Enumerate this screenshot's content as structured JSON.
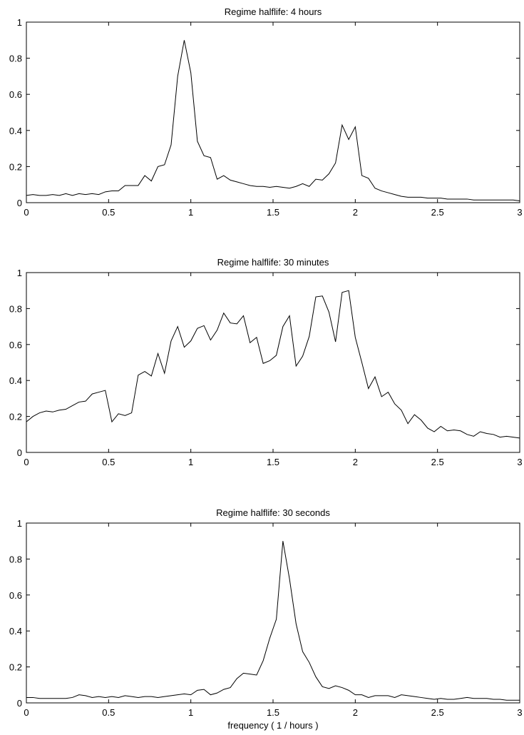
{
  "chart_data": [
    {
      "type": "line",
      "title": "Regime halflife: 4 hours",
      "xlabel": "",
      "ylabel": "",
      "xlim": [
        0,
        3
      ],
      "ylim": [
        0,
        1
      ],
      "xticks": [
        0,
        0.5,
        1,
        1.5,
        2,
        2.5,
        3
      ],
      "xtick_labels": [
        "0",
        "0.5",
        "1",
        "1.5",
        "2",
        "2.5",
        "3"
      ],
      "yticks": [
        0,
        0.2,
        0.4,
        0.6,
        0.8,
        1
      ],
      "ytick_labels": [
        "0",
        "0.2",
        "0.4",
        "0.6",
        "0.8",
        "1"
      ],
      "grid": false,
      "series": [
        {
          "color": "#000000",
          "x": [
            0,
            0.04,
            0.08,
            0.12,
            0.16,
            0.2,
            0.24,
            0.28,
            0.32,
            0.36,
            0.4,
            0.44,
            0.48,
            0.52,
            0.56,
            0.6,
            0.64,
            0.68,
            0.72,
            0.76,
            0.8,
            0.84,
            0.88,
            0.92,
            0.96,
            1.0,
            1.04,
            1.08,
            1.12,
            1.16,
            1.2,
            1.24,
            1.28,
            1.32,
            1.36,
            1.4,
            1.44,
            1.48,
            1.52,
            1.56,
            1.6,
            1.64,
            1.68,
            1.72,
            1.76,
            1.8,
            1.84,
            1.88,
            1.92,
            1.96,
            2.0,
            2.04,
            2.08,
            2.12,
            2.16,
            2.2,
            2.24,
            2.28,
            2.32,
            2.36,
            2.4,
            2.44,
            2.48,
            2.52,
            2.56,
            2.6,
            2.64,
            2.68,
            2.72,
            2.76,
            2.8,
            2.84,
            2.88,
            2.92,
            2.96,
            3.0
          ],
          "y": [
            0.04,
            0.045,
            0.04,
            0.04,
            0.045,
            0.04,
            0.05,
            0.04,
            0.05,
            0.045,
            0.05,
            0.045,
            0.06,
            0.065,
            0.065,
            0.095,
            0.095,
            0.095,
            0.15,
            0.12,
            0.2,
            0.21,
            0.32,
            0.7,
            0.9,
            0.72,
            0.34,
            0.26,
            0.25,
            0.13,
            0.15,
            0.125,
            0.115,
            0.105,
            0.095,
            0.09,
            0.09,
            0.085,
            0.09,
            0.085,
            0.08,
            0.09,
            0.105,
            0.09,
            0.13,
            0.125,
            0.16,
            0.22,
            0.43,
            0.35,
            0.42,
            0.15,
            0.135,
            0.08,
            0.065,
            0.055,
            0.045,
            0.035,
            0.03,
            0.03,
            0.03,
            0.025,
            0.025,
            0.025,
            0.02,
            0.02,
            0.02,
            0.02,
            0.015,
            0.015,
            0.015,
            0.015,
            0.015,
            0.015,
            0.015,
            0.01
          ]
        }
      ]
    },
    {
      "type": "line",
      "title": "Regime halflife: 30 minutes",
      "xlabel": "",
      "ylabel": "",
      "xlim": [
        0,
        3
      ],
      "ylim": [
        0,
        1
      ],
      "xticks": [
        0,
        0.5,
        1,
        1.5,
        2,
        2.5,
        3
      ],
      "xtick_labels": [
        "0",
        "0.5",
        "1",
        "1.5",
        "2",
        "2.5",
        "3"
      ],
      "yticks": [
        0,
        0.2,
        0.4,
        0.6,
        0.8,
        1
      ],
      "ytick_labels": [
        "0",
        "0.2",
        "0.4",
        "0.6",
        "0.8",
        "1"
      ],
      "grid": false,
      "series": [
        {
          "color": "#000000",
          "x": [
            0,
            0.04,
            0.08,
            0.12,
            0.16,
            0.2,
            0.24,
            0.28,
            0.32,
            0.36,
            0.4,
            0.44,
            0.48,
            0.52,
            0.56,
            0.6,
            0.64,
            0.68,
            0.72,
            0.76,
            0.8,
            0.84,
            0.88,
            0.92,
            0.96,
            1.0,
            1.04,
            1.08,
            1.12,
            1.16,
            1.2,
            1.24,
            1.28,
            1.32,
            1.36,
            1.4,
            1.44,
            1.48,
            1.52,
            1.56,
            1.6,
            1.64,
            1.68,
            1.72,
            1.76,
            1.8,
            1.84,
            1.88,
            1.92,
            1.96,
            2.0,
            2.04,
            2.08,
            2.12,
            2.16,
            2.2,
            2.24,
            2.28,
            2.32,
            2.36,
            2.4,
            2.44,
            2.48,
            2.52,
            2.56,
            2.6,
            2.64,
            2.68,
            2.72,
            2.76,
            2.8,
            2.84,
            2.88,
            2.92,
            2.96,
            3.0
          ],
          "y": [
            0.17,
            0.2,
            0.22,
            0.23,
            0.225,
            0.235,
            0.24,
            0.26,
            0.28,
            0.285,
            0.325,
            0.335,
            0.345,
            0.17,
            0.215,
            0.205,
            0.22,
            0.43,
            0.45,
            0.425,
            0.55,
            0.44,
            0.62,
            0.7,
            0.585,
            0.62,
            0.69,
            0.705,
            0.625,
            0.68,
            0.775,
            0.72,
            0.715,
            0.76,
            0.61,
            0.64,
            0.495,
            0.51,
            0.54,
            0.7,
            0.76,
            0.48,
            0.535,
            0.645,
            0.865,
            0.87,
            0.78,
            0.615,
            0.89,
            0.9,
            0.64,
            0.5,
            0.355,
            0.42,
            0.31,
            0.335,
            0.27,
            0.235,
            0.16,
            0.21,
            0.18,
            0.135,
            0.115,
            0.145,
            0.12,
            0.125,
            0.12,
            0.1,
            0.09,
            0.115,
            0.105,
            0.1,
            0.085,
            0.09,
            0.085,
            0.08
          ]
        }
      ]
    },
    {
      "type": "line",
      "title": "Regime halflife: 30 seconds",
      "xlabel": "frequency ( 1 / hours )",
      "ylabel": "",
      "xlim": [
        0,
        3
      ],
      "ylim": [
        0,
        1
      ],
      "xticks": [
        0,
        0.5,
        1,
        1.5,
        2,
        2.5,
        3
      ],
      "xtick_labels": [
        "0",
        "0.5",
        "1",
        "1.5",
        "2",
        "2.5",
        "3"
      ],
      "yticks": [
        0,
        0.2,
        0.4,
        0.6,
        0.8,
        1
      ],
      "ytick_labels": [
        "0",
        "0.2",
        "0.4",
        "0.6",
        "0.8",
        "1"
      ],
      "grid": false,
      "series": [
        {
          "color": "#000000",
          "x": [
            0,
            0.04,
            0.08,
            0.12,
            0.16,
            0.2,
            0.24,
            0.28,
            0.32,
            0.36,
            0.4,
            0.44,
            0.48,
            0.52,
            0.56,
            0.6,
            0.64,
            0.68,
            0.72,
            0.76,
            0.8,
            0.84,
            0.88,
            0.92,
            0.96,
            1.0,
            1.04,
            1.08,
            1.12,
            1.16,
            1.2,
            1.24,
            1.28,
            1.32,
            1.36,
            1.4,
            1.44,
            1.48,
            1.52,
            1.56,
            1.6,
            1.64,
            1.68,
            1.72,
            1.76,
            1.8,
            1.84,
            1.88,
            1.92,
            1.96,
            2.0,
            2.04,
            2.08,
            2.12,
            2.16,
            2.2,
            2.24,
            2.28,
            2.32,
            2.36,
            2.4,
            2.44,
            2.48,
            2.52,
            2.56,
            2.6,
            2.64,
            2.68,
            2.72,
            2.76,
            2.8,
            2.84,
            2.88,
            2.92,
            2.96,
            3.0
          ],
          "y": [
            0.03,
            0.03,
            0.025,
            0.025,
            0.025,
            0.025,
            0.025,
            0.03,
            0.045,
            0.04,
            0.03,
            0.035,
            0.03,
            0.035,
            0.03,
            0.04,
            0.035,
            0.03,
            0.035,
            0.035,
            0.03,
            0.035,
            0.04,
            0.045,
            0.05,
            0.045,
            0.07,
            0.075,
            0.045,
            0.055,
            0.075,
            0.085,
            0.135,
            0.165,
            0.16,
            0.155,
            0.235,
            0.36,
            0.465,
            0.9,
            0.69,
            0.44,
            0.285,
            0.225,
            0.145,
            0.09,
            0.08,
            0.095,
            0.085,
            0.07,
            0.045,
            0.045,
            0.03,
            0.04,
            0.04,
            0.04,
            0.03,
            0.045,
            0.04,
            0.035,
            0.03,
            0.025,
            0.02,
            0.025,
            0.02,
            0.02,
            0.025,
            0.03,
            0.025,
            0.025,
            0.025,
            0.02,
            0.02,
            0.015,
            0.015,
            0.015
          ]
        }
      ]
    }
  ]
}
